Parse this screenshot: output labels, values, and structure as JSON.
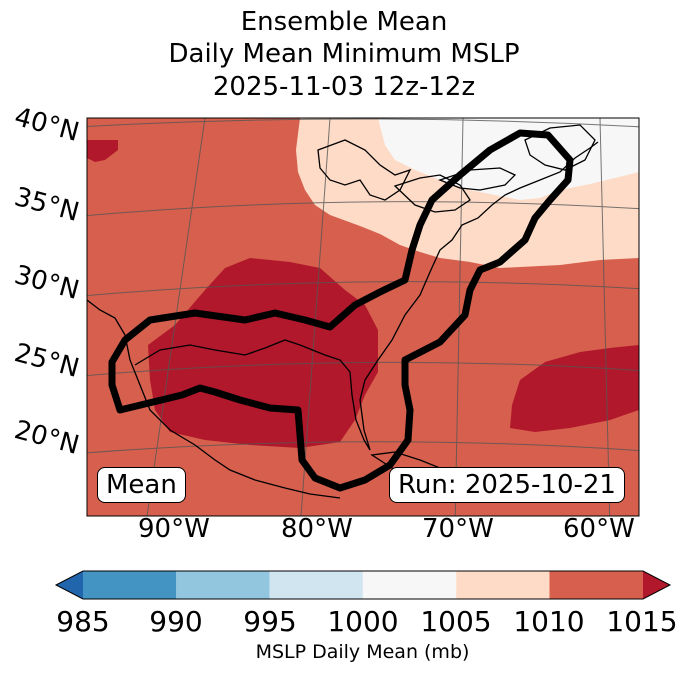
{
  "title_lines": [
    "Ensemble Mean",
    "Daily Mean Minimum MSLP",
    "2025-11-03 12z-12z"
  ],
  "lat_labels": [
    "40°N",
    "35°N",
    "30°N",
    "25°N",
    "20°N"
  ],
  "lon_labels": [
    "90°W",
    "80°W",
    "70°W",
    "60°W"
  ],
  "box_left": "Mean",
  "box_right": "Run: 2025-10-21",
  "colorbar": {
    "ticks": [
      "985",
      "990",
      "995",
      "1000",
      "1005",
      "1010",
      "1015"
    ],
    "colors": [
      "#2166ac",
      "#4393c3",
      "#92c5de",
      "#d1e5f0",
      "#f7f7f7",
      "#fddbc7",
      "#d6604d",
      "#b2182b"
    ],
    "label": "MSLP Daily Mean (mb)"
  },
  "fill_colors": {
    "light": "#f7f7f7",
    "pale": "#fddbc7",
    "medium": "#d6604d",
    "dark": "#b2182b"
  },
  "outline_color": "#000000"
}
